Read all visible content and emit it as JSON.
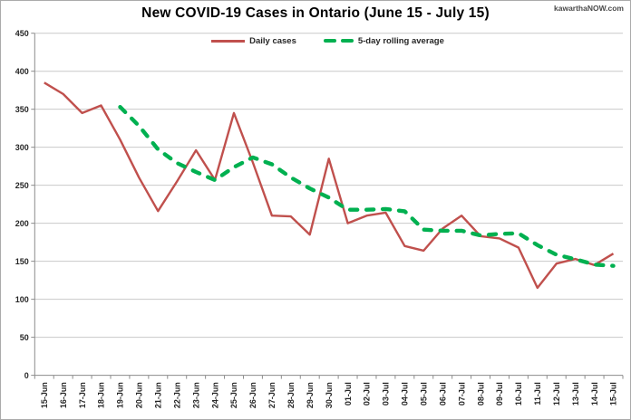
{
  "title": "New COVID-19 Cases in Ontario (June 15 - July 15)",
  "watermark": "kawarthaNOW.com",
  "colors": {
    "daily_cases": "#C0504D",
    "rolling_average": "#00B050",
    "gridline": "#C9C9C9",
    "axis": "#8C8C8C",
    "tick_text": "#262626"
  },
  "legend": {
    "daily_label": "Daily cases",
    "average_label": "5-day rolling average"
  },
  "chart_data": {
    "type": "line",
    "title": "New COVID-19 Cases in Ontario (June 15 - July 15)",
    "xlabel": "",
    "ylabel": "",
    "ylim": [
      0,
      450
    ],
    "ytick_step": 50,
    "y_ticks": [
      0,
      50,
      100,
      150,
      200,
      250,
      300,
      350,
      400,
      450
    ],
    "grid": "horizontal",
    "legend_position": "top-center",
    "categories": [
      "15-Jun",
      "16-Jun",
      "17-Jun",
      "18-Jun",
      "19-Jun",
      "20-Jun",
      "21-Jun",
      "22-Jun",
      "23-Jun",
      "24-Jun",
      "25-Jun",
      "26-Jun",
      "27-Jun",
      "28-Jun",
      "29-Jun",
      "30-Jun",
      "01-Jul",
      "02-Jul",
      "03-Jul",
      "04-Jul",
      "05-Jul",
      "06-Jul",
      "07-Jul",
      "08-Jul",
      "09-Jul",
      "10-Jul",
      "11-Jul",
      "12-Jul",
      "13-Jul",
      "14-Jul",
      "15-Jul"
    ],
    "series": [
      {
        "name": "Daily cases",
        "color": "#C0504D",
        "style": "solid",
        "values": [
          385,
          370,
          345,
          355,
          310,
          260,
          216,
          255,
          296,
          257,
          345,
          280,
          210,
          209,
          185,
          285,
          200,
          210,
          214,
          170,
          164,
          193,
          210,
          183,
          180,
          168,
          115,
          147,
          153,
          145,
          160
        ]
      },
      {
        "name": "5-day rolling average",
        "color": "#00B050",
        "style": "dashed",
        "values": [
          null,
          null,
          null,
          null,
          353.0,
          328.0,
          297.2,
          279.2,
          267.4,
          256.8,
          273.8,
          286.6,
          277.6,
          260.2,
          245.8,
          233.8,
          217.8,
          217.8,
          218.8,
          215.8,
          191.6,
          190.2,
          190.2,
          184.0,
          186.0,
          186.8,
          171.2,
          158.6,
          152.6,
          145.6,
          144.0
        ]
      }
    ]
  }
}
